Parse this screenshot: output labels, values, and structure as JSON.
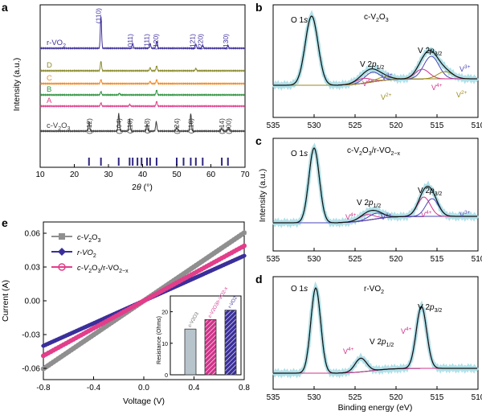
{
  "figure_title": "",
  "panels": [
    "a",
    "b",
    "c",
    "d",
    "e"
  ],
  "colors": {
    "rvo2": "#3d2f9c",
    "D": "#8b8b2c",
    "C": "#f08a24",
    "B": "#2f9440",
    "A": "#e23e8a",
    "cv2o3": "#3a3a3a",
    "refbar": "#2c2580",
    "xps_data": "#a8dde6",
    "xps_fit": "#111111",
    "xps_O": "#1c8a6e",
    "xps_bg": "#6a3aa1",
    "xps_V4": "#d0338a",
    "xps_V3": "#4a46b6",
    "xps_V2": "#9a8b1c",
    "iv_c": "#8f8f8f",
    "iv_r": "#3a2f9a",
    "iv_cr": "#e23e8a"
  },
  "chart_data": [
    {
      "panel": "a",
      "type": "line",
      "xlabel": "2θ (°)",
      "ylabel": "Intensity (a.u.)",
      "xlim": [
        10,
        70
      ],
      "xticks": [
        10,
        20,
        30,
        40,
        50,
        60,
        70
      ],
      "series": [
        {
          "name": "r-VO2",
          "label_main": "r-VO",
          "label_sub": "2",
          "color_key": "rvo2",
          "peaks": [
            [
              27.8,
              40
            ],
            [
              37.1,
              6
            ],
            [
              42.2,
              6
            ],
            [
              44.1,
              9
            ],
            [
              55.6,
              5
            ],
            [
              57.6,
              4
            ],
            [
              65.0,
              3
            ]
          ]
        },
        {
          "name": "D",
          "label_main": "D",
          "label_sub": "",
          "color_key": "D",
          "peaks": [
            [
              27.8,
              12
            ],
            [
              42.2,
              4
            ],
            [
              44.1,
              6
            ],
            [
              55.6,
              3
            ]
          ]
        },
        {
          "name": "C",
          "label_main": "C",
          "label_sub": "",
          "color_key": "C",
          "peaks": [
            [
              27.8,
              5
            ],
            [
              42.2,
              3
            ],
            [
              44.1,
              5
            ]
          ]
        },
        {
          "name": "B",
          "label_main": "B",
          "label_sub": "",
          "color_key": "B",
          "peaks": [
            [
              27.8,
              4
            ],
            [
              44.1,
              6
            ],
            [
              33.2,
              2
            ]
          ]
        },
        {
          "name": "A",
          "label_main": "A",
          "label_sub": "",
          "color_key": "A",
          "peaks": [
            [
              27.8,
              4
            ],
            [
              44.1,
              6
            ],
            [
              36.2,
              2
            ]
          ]
        },
        {
          "name": "c-V2O3",
          "label_main": "c-V",
          "label_sub": "2",
          "label_main2": "O",
          "label_sub2": "3",
          "color_key": "cv2o3",
          "peaks": [
            [
              24.3,
              12
            ],
            [
              33.0,
              22
            ],
            [
              36.2,
              15
            ],
            [
              41.3,
              9
            ],
            [
              44.0,
              12
            ],
            [
              50.0,
              5
            ],
            [
              54.1,
              22
            ],
            [
              63.2,
              4
            ],
            [
              65.2,
              5
            ]
          ]
        }
      ],
      "annotations_top": [
        {
          "x": 27.8,
          "text": "(110)"
        },
        {
          "x": 37.1,
          "text": "(011)"
        },
        {
          "x": 41.9,
          "text": "(111)"
        },
        {
          "x": 44.6,
          "text": "(120)"
        },
        {
          "x": 55.3,
          "text": "(121)"
        },
        {
          "x": 57.6,
          "text": "(220)"
        },
        {
          "x": 65.0,
          "text": "(130)"
        }
      ],
      "annotations_bottom": [
        {
          "x": 24.3,
          "text": "(012)"
        },
        {
          "x": 33.0,
          "text": "(104)"
        },
        {
          "x": 36.2,
          "text": "(110)"
        },
        {
          "x": 41.3,
          "text": "(113)"
        },
        {
          "x": 50.0,
          "text": "(024)"
        },
        {
          "x": 54.1,
          "text": "(116)"
        },
        {
          "x": 63.2,
          "text": "(214)"
        },
        {
          "x": 65.2,
          "text": "(300)"
        }
      ],
      "ref_bars": [
        24.3,
        27.8,
        33.0,
        36.2,
        37.1,
        38.5,
        39.7,
        41.3,
        42.2,
        44.1,
        50.0,
        52.0,
        54.1,
        55.6,
        57.6,
        63.2,
        65.0
      ]
    },
    {
      "panel": "b",
      "type": "line",
      "title_main": "c-V",
      "title_sub": "2",
      "title_main2": "O",
      "title_sub2": "3",
      "xlim": [
        535,
        510
      ],
      "xticks": [
        535,
        530,
        525,
        520,
        515,
        510
      ],
      "peaks_label": "O 1s",
      "labels": [
        "V 2p1/2",
        "V 2p3/2",
        "V3+",
        "V4+",
        "V2+"
      ]
    },
    {
      "panel": "c",
      "type": "line",
      "title_text": "c-V2O3/r-VO2−x",
      "ylabel": "Intensity (a.u.)",
      "xlim": [
        535,
        510
      ],
      "xticks": [
        535,
        530,
        525,
        520,
        515,
        510
      ]
    },
    {
      "panel": "d",
      "type": "line",
      "title_text": "r-VO2",
      "xlabel": "Binding energy (eV)",
      "xlim": [
        535,
        510
      ],
      "xticks": [
        535,
        530,
        525,
        520,
        515,
        510
      ]
    },
    {
      "panel": "e",
      "type": "line",
      "xlabel": "Voltage (V)",
      "ylabel": "Current (A)",
      "xlim": [
        -0.8,
        0.8
      ],
      "ylim": [
        -0.07,
        0.07
      ],
      "xticks": [
        -0.8,
        -0.4,
        0.0,
        0.4,
        0.8
      ],
      "yticks": [
        -0.06,
        -0.03,
        0.0,
        0.03,
        0.06
      ],
      "series": [
        {
          "name": "c-V2O3",
          "slope": 0.0755,
          "color_key": "iv_c"
        },
        {
          "name": "r-VO2",
          "slope": 0.05,
          "color_key": "iv_r"
        },
        {
          "name": "c-V2O3/r-VO2-x",
          "slope": 0.061,
          "color_key": "iv_cr"
        }
      ],
      "inset": {
        "type": "bar",
        "ylabel": "Resistance (Ohms)",
        "ylim": [
          0,
          25
        ],
        "yticks": [
          0,
          10,
          20
        ],
        "bars": [
          {
            "name": "c-V2O3",
            "value": 14.5,
            "fill": "#b8c4cc"
          },
          {
            "name": "c-V2O3/r-VO2-x",
            "value": 17.5,
            "fill": "#d0338a"
          },
          {
            "name": "r-VO2",
            "value": 20.5,
            "fill": "#3a2f9a"
          }
        ]
      }
    }
  ],
  "text": {
    "a": "a",
    "b": "b",
    "c": "c",
    "d": "d",
    "e": "e",
    "a_ylabel": "Intensity (a.u.)",
    "a_xlabel_pre": "2",
    "a_xlabel_theta": "θ",
    "a_xlabel_post": " (°)",
    "c_ylabel": "Intensity (a.u.)",
    "d_xlabel": "Binding energy (eV)",
    "e_xlabel": "Voltage (V)",
    "e_ylabel": "Current (A)",
    "O1s": "O 1",
    "s": "s",
    "V2p": "V 2",
    "p12": "p",
    "half": "1/2",
    "threehalf": "3/2",
    "V3p": "V",
    "V3sup": "3+",
    "V4sup": "4+",
    "V2sup": "2+",
    "b_title": "c-V",
    "b_t2": "2",
    "b_t3": "O",
    "b_t4": "3",
    "c_t1": "c-V",
    "c_t2": "2",
    "c_t3": "O",
    "c_t4": "3",
    "c_t5": "/r-VO",
    "c_t6": "2−x",
    "d_t1": "r-VO",
    "d_t2": "2",
    "leg1": "c-V",
    "leg2": "2",
    "leg3": "O",
    "leg4": "3",
    "leg_r1": "r-VO",
    "leg_r2": "2",
    "leg_cr5": "/r-VO",
    "leg_cr6": "2−x",
    "inset_ylabel": "Resistance (Ohms)",
    "inset_b1": "c-V2O3",
    "inset_b2": "c-V2O3/r-VO2-x",
    "inset_b3": "r-VO2"
  }
}
